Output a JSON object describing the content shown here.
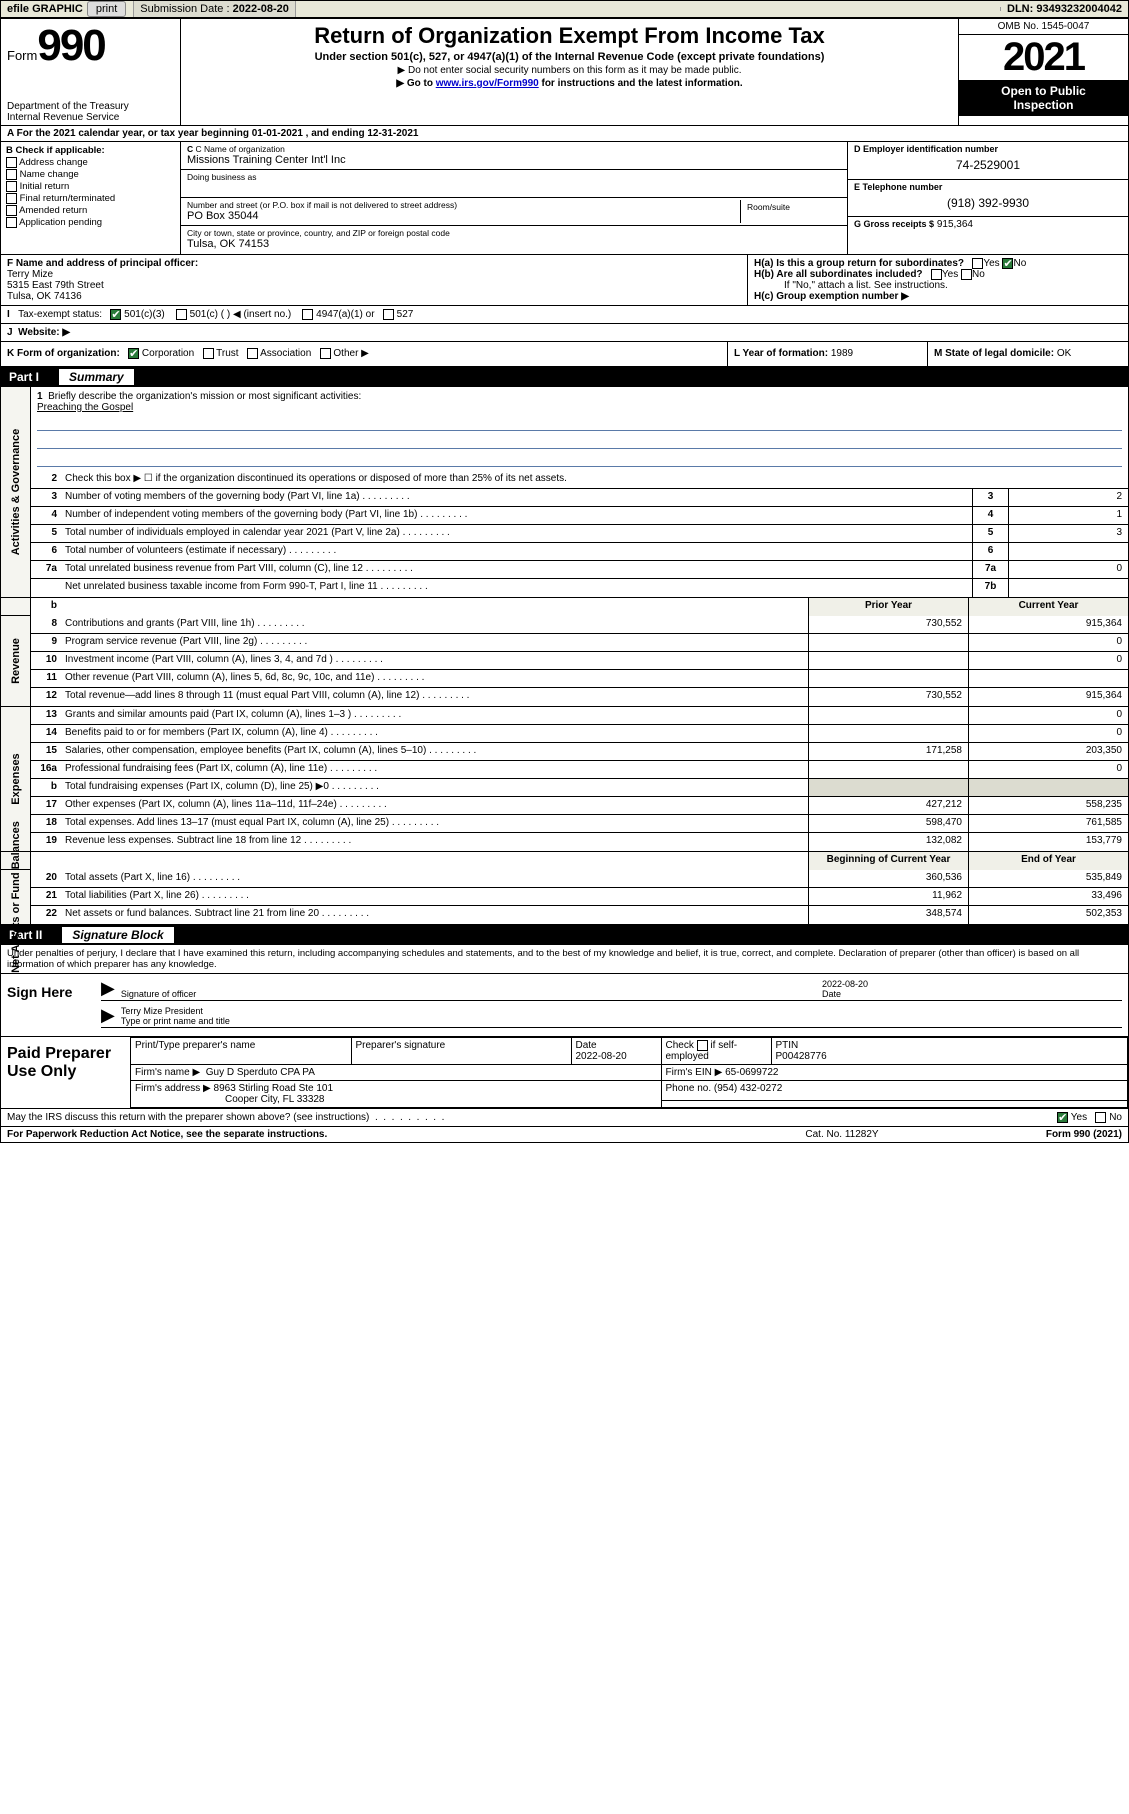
{
  "topbar": {
    "efile": "efile GRAPHIC",
    "print": "print",
    "sub_lbl": "Submission Date :",
    "sub_val": "2022-08-20",
    "dln_lbl": "DLN:",
    "dln_val": "93493232004042"
  },
  "header": {
    "form_word": "Form",
    "form_num": "990",
    "dept1": "Department of the Treasury",
    "dept2": "Internal Revenue Service",
    "title": "Return of Organization Exempt From Income Tax",
    "sub1": "Under section 501(c), 527, or 4947(a)(1) of the Internal Revenue Code (except private foundations)",
    "sub2": "▶ Do not enter social security numbers on this form as it may be made public.",
    "sub3a": "▶ Go to ",
    "sub3link": "www.irs.gov/Form990",
    "sub3b": " for instructions and the latest information.",
    "omb": "OMB No. 1545-0047",
    "year": "2021",
    "otp1": "Open to Public",
    "otp2": "Inspection"
  },
  "rowA": {
    "text_a": "A For the 2021 calendar year, or tax year beginning ",
    "begin": "01-01-2021",
    "mid": " , and ending ",
    "end": "12-31-2021"
  },
  "boxB": {
    "title": "B Check if applicable:",
    "opts": [
      "Address change",
      "Name change",
      "Initial return",
      "Final return/terminated",
      "Amended return",
      "Application pending"
    ]
  },
  "boxC": {
    "name_lbl": "C Name of organization",
    "name_val": "Missions Training Center Int'l Inc",
    "dba_lbl": "Doing business as",
    "dba_val": "",
    "addr_lbl": "Number and street (or P.O. box if mail is not delivered to street address)",
    "addr_val": "PO Box 35044",
    "room_lbl": "Room/suite",
    "city_lbl": "City or town, state or province, country, and ZIP or foreign postal code",
    "city_val": "Tulsa, OK  74153"
  },
  "boxD": {
    "lbl": "D Employer identification number",
    "val": "74-2529001"
  },
  "boxE": {
    "lbl": "E Telephone number",
    "val": "(918) 392-9930"
  },
  "boxG": {
    "lbl": "G Gross receipts $",
    "val": "915,364"
  },
  "boxF": {
    "lbl": "F Name and address of principal officer:",
    "l1": "Terry Mize",
    "l2": "5315 East 79th Street",
    "l3": "Tulsa, OK  74136"
  },
  "boxH": {
    "a": "H(a)  Is this a group return for subordinates?",
    "b": "H(b)  Are all subordinates included?",
    "bnote": "If \"No,\" attach a list. See instructions.",
    "c": "H(c)  Group exemption number ▶",
    "yes": "Yes",
    "no": "No"
  },
  "boxI": {
    "lbl": "Tax-exempt status:",
    "o1": "501(c)(3)",
    "o2": "501(c) (  ) ◀ (insert no.)",
    "o3": "4947(a)(1) or",
    "o4": "527"
  },
  "boxJ": {
    "lbl": "Website: ▶",
    "val": ""
  },
  "boxK": {
    "lbl": "K Form of organization:",
    "o1": "Corporation",
    "o2": "Trust",
    "o3": "Association",
    "o4": "Other ▶"
  },
  "boxL": {
    "lbl": "L Year of formation:",
    "val": "1989"
  },
  "boxM": {
    "lbl": "M State of legal domicile:",
    "val": "OK"
  },
  "part1": {
    "num": "Part I",
    "title": "Summary"
  },
  "sec_ag": {
    "label": "Activities & Governance",
    "l1": "Briefly describe the organization's mission or most significant activities:",
    "l1v": "Preaching the Gospel",
    "l2": "Check this box ▶ ☐  if the organization discontinued its operations or disposed of more than 25% of its net assets.",
    "rows": [
      {
        "n": "3",
        "t": "Number of voting members of the governing body (Part VI, line 1a)",
        "nc": "3",
        "v": "2"
      },
      {
        "n": "4",
        "t": "Number of independent voting members of the governing body (Part VI, line 1b)",
        "nc": "4",
        "v": "1"
      },
      {
        "n": "5",
        "t": "Total number of individuals employed in calendar year 2021 (Part V, line 2a)",
        "nc": "5",
        "v": "3"
      },
      {
        "n": "6",
        "t": "Total number of volunteers (estimate if necessary)",
        "nc": "6",
        "v": ""
      },
      {
        "n": "7a",
        "t": "Total unrelated business revenue from Part VIII, column (C), line 12",
        "nc": "7a",
        "v": "0"
      },
      {
        "n": "",
        "t": "Net unrelated business taxable income from Form 990-T, Part I, line 11",
        "nc": "7b",
        "v": ""
      }
    ]
  },
  "yrhdr": {
    "b": "b",
    "py": "Prior Year",
    "cy": "Current Year"
  },
  "sec_rev": {
    "label": "Revenue",
    "rows": [
      {
        "n": "8",
        "t": "Contributions and grants (Part VIII, line 1h)",
        "py": "730,552",
        "cy": "915,364"
      },
      {
        "n": "9",
        "t": "Program service revenue (Part VIII, line 2g)",
        "py": "",
        "cy": "0"
      },
      {
        "n": "10",
        "t": "Investment income (Part VIII, column (A), lines 3, 4, and 7d )",
        "py": "",
        "cy": "0"
      },
      {
        "n": "11",
        "t": "Other revenue (Part VIII, column (A), lines 5, 6d, 8c, 9c, 10c, and 11e)",
        "py": "",
        "cy": ""
      },
      {
        "n": "12",
        "t": "Total revenue—add lines 8 through 11 (must equal Part VIII, column (A), line 12)",
        "py": "730,552",
        "cy": "915,364"
      }
    ]
  },
  "sec_exp": {
    "label": "Expenses",
    "rows": [
      {
        "n": "13",
        "t": "Grants and similar amounts paid (Part IX, column (A), lines 1–3 )",
        "py": "",
        "cy": "0"
      },
      {
        "n": "14",
        "t": "Benefits paid to or for members (Part IX, column (A), line 4)",
        "py": "",
        "cy": "0"
      },
      {
        "n": "15",
        "t": "Salaries, other compensation, employee benefits (Part IX, column (A), lines 5–10)",
        "py": "171,258",
        "cy": "203,350"
      },
      {
        "n": "16a",
        "t": "Professional fundraising fees (Part IX, column (A), line 11e)",
        "py": "",
        "cy": "0"
      },
      {
        "n": "b",
        "t": "Total fundraising expenses (Part IX, column (D), line 25) ▶0",
        "py": "SHADE",
        "cy": "SHADE"
      },
      {
        "n": "17",
        "t": "Other expenses (Part IX, column (A), lines 11a–11d, 11f–24e)",
        "py": "427,212",
        "cy": "558,235"
      },
      {
        "n": "18",
        "t": "Total expenses. Add lines 13–17 (must equal Part IX, column (A), line 25)",
        "py": "598,470",
        "cy": "761,585"
      },
      {
        "n": "19",
        "t": "Revenue less expenses. Subtract line 18 from line 12",
        "py": "132,082",
        "cy": "153,779"
      }
    ]
  },
  "nahdr": {
    "py": "Beginning of Current Year",
    "cy": "End of Year"
  },
  "sec_na": {
    "label": "Net Assets or Fund Balances",
    "rows": [
      {
        "n": "20",
        "t": "Total assets (Part X, line 16)",
        "py": "360,536",
        "cy": "535,849"
      },
      {
        "n": "21",
        "t": "Total liabilities (Part X, line 26)",
        "py": "11,962",
        "cy": "33,496"
      },
      {
        "n": "22",
        "t": "Net assets or fund balances. Subtract line 21 from line 20",
        "py": "348,574",
        "cy": "502,353"
      }
    ]
  },
  "part2": {
    "num": "Part II",
    "title": "Signature Block"
  },
  "sig": {
    "intro": "Under penalties of perjury, I declare that I have examined this return, including accompanying schedules and statements, and to the best of my knowledge and belief, it is true, correct, and complete. Declaration of preparer (other than officer) is based on all information of which preparer has any knowledge.",
    "here": "Sign Here",
    "sig_lbl": "Signature of officer",
    "date_lbl": "Date",
    "date_val": "2022-08-20",
    "name_val": "Terry Mize  President",
    "name_lbl": "Type or print name and title"
  },
  "prep": {
    "here": "Paid Preparer Use Only",
    "h1": "Print/Type preparer's name",
    "h2": "Preparer's signature",
    "h3": "Date",
    "h3v": "2022-08-20",
    "h4a": "Check",
    "h4b": "if self-employed",
    "h5": "PTIN",
    "h5v": "P00428776",
    "firm_lbl": "Firm's name      ▶",
    "firm_val": "Guy D Sperduto CPA PA",
    "ein_lbl": "Firm's EIN ▶",
    "ein_val": "65-0699722",
    "addr_lbl": "Firm's address ▶",
    "addr_val1": "8963 Stirling Road Ste 101",
    "addr_val2": "Cooper City, FL  33328",
    "ph_lbl": "Phone no.",
    "ph_val": "(954) 432-0272"
  },
  "foot": {
    "q": "May the IRS discuss this return with the preparer shown above? (see instructions)",
    "yes": "Yes",
    "no": "No",
    "pra": "For Paperwork Reduction Act Notice, see the separate instructions.",
    "cat": "Cat. No. 11282Y",
    "form": "Form 990 (2021)"
  },
  "colors": {
    "accent": "#2a7a3a",
    "link": "#0000cc"
  }
}
